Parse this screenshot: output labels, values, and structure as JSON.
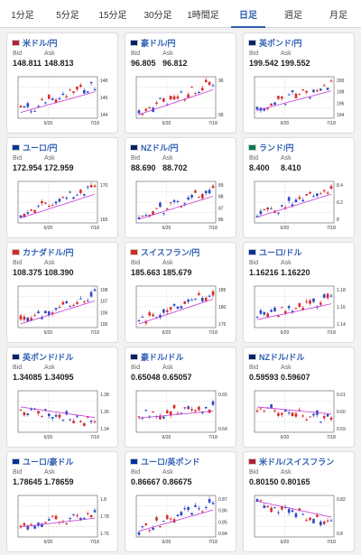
{
  "tabs": [
    {
      "label": "1分足",
      "active": false
    },
    {
      "label": "5分足",
      "active": false
    },
    {
      "label": "15分足",
      "active": false
    },
    {
      "label": "30分足",
      "active": false
    },
    {
      "label": "1時間足",
      "active": false
    },
    {
      "label": "日足",
      "active": true
    },
    {
      "label": "週足",
      "active": false
    },
    {
      "label": "月足",
      "active": false
    }
  ],
  "labels": {
    "bid": "Bid",
    "ask": "Ask"
  },
  "colors": {
    "up": "#d62a2a",
    "down": "#2a47c8",
    "ma": "#c43ad6",
    "accent": "#2f5fb3"
  },
  "pairs": [
    {
      "title": "米ドル/円",
      "flag": "us",
      "bid": "148.811",
      "ask": "148.813",
      "x_ticks": [
        "6/20",
        "7/18"
      ],
      "y_ticks": [
        "148",
        "146",
        "144"
      ],
      "trend": [
        0.2,
        0.78
      ]
    },
    {
      "title": "豪ドル/円",
      "flag": "au",
      "bid": "96.805",
      "ask": "96.812",
      "x_ticks": [
        "6/20",
        "7/18"
      ],
      "y_ticks": [
        "96",
        "95"
      ],
      "trend": [
        0.15,
        0.85
      ]
    },
    {
      "title": "英ポンド/円",
      "flag": "gb",
      "bid": "199.542",
      "ask": "199.552",
      "x_ticks": [
        "6/20",
        "7/18"
      ],
      "y_ticks": [
        "200",
        "198",
        "196",
        "194"
      ],
      "trend": [
        0.25,
        0.8
      ]
    },
    {
      "title": "ユーロ/円",
      "flag": "eu",
      "bid": "172.954",
      "ask": "172.959",
      "x_ticks": [
        "6/20",
        "7/18"
      ],
      "y_ticks": [
        "170",
        "165"
      ],
      "trend": [
        0.18,
        0.85
      ]
    },
    {
      "title": "NZドル/円",
      "flag": "nz",
      "bid": "88.690",
      "ask": "88.702",
      "x_ticks": [
        "6/20",
        "7/18"
      ],
      "y_ticks": [
        "89",
        "88",
        "87",
        "86"
      ],
      "trend": [
        0.15,
        0.8
      ]
    },
    {
      "title": "ランド/円",
      "flag": "za",
      "bid": "8.400",
      "ask": "8.410",
      "x_ticks": [
        "6/20",
        "7/18"
      ],
      "y_ticks": [
        "8.4",
        "8.2",
        "8"
      ],
      "trend": [
        0.2,
        0.85
      ]
    },
    {
      "title": "カナダドル/円",
      "flag": "ca",
      "bid": "108.375",
      "ask": "108.390",
      "x_ticks": [
        "6/20",
        "7/18"
      ],
      "y_ticks": [
        "108",
        "107",
        "106",
        "105"
      ],
      "trend": [
        0.15,
        0.8
      ]
    },
    {
      "title": "スイスフラン/円",
      "flag": "ch",
      "bid": "185.663",
      "ask": "185.679",
      "x_ticks": [
        "6/20",
        "7/18"
      ],
      "y_ticks": [
        "185",
        "180",
        "175"
      ],
      "trend": [
        0.15,
        0.85
      ]
    },
    {
      "title": "ユーロ/ドル",
      "flag": "eu",
      "bid": "1.16216",
      "ask": "1.16220",
      "x_ticks": [
        "6/20",
        "7/18"
      ],
      "y_ticks": [
        "1.18",
        "1.16",
        "1.14"
      ],
      "trend": [
        0.25,
        0.7
      ]
    },
    {
      "title": "英ポンド/ドル",
      "flag": "gb",
      "bid": "1.34085",
      "ask": "1.34095",
      "x_ticks": [
        "6/20",
        "7/18"
      ],
      "y_ticks": [
        "1.38",
        "1.36",
        "1.34"
      ],
      "trend": [
        0.55,
        0.25
      ]
    },
    {
      "title": "豪ドル/ドル",
      "flag": "au",
      "bid": "0.65048",
      "ask": "0.65057",
      "x_ticks": [
        "6/20",
        "7/18"
      ],
      "y_ticks": [
        "0.65",
        "0.64"
      ],
      "trend": [
        0.4,
        0.6
      ]
    },
    {
      "title": "NZドル/ドル",
      "flag": "nz",
      "bid": "0.59593",
      "ask": "0.59607",
      "x_ticks": [
        "6/20",
        "7/18"
      ],
      "y_ticks": [
        "0.61",
        "0.60",
        "0.59"
      ],
      "trend": [
        0.55,
        0.35
      ]
    },
    {
      "title": "ユーロ/豪ドル",
      "flag": "eu",
      "bid": "1.78645",
      "ask": "1.78659",
      "x_ticks": [
        "6/20",
        "7/18"
      ],
      "y_ticks": [
        "1.8",
        "1.78",
        "1.76"
      ],
      "trend": [
        0.3,
        0.55
      ]
    },
    {
      "title": "ユーロ/英ポンド",
      "flag": "eu",
      "bid": "0.86667",
      "ask": "0.86675",
      "x_ticks": [
        "6/20",
        "7/18"
      ],
      "y_ticks": [
        "0.87",
        "0.86",
        "0.85",
        "0.84"
      ],
      "trend": [
        0.2,
        0.8
      ]
    },
    {
      "title": "米ドル/スイスフラン",
      "flag": "us",
      "bid": "0.80150",
      "ask": "0.80165",
      "x_ticks": [
        "6/20",
        "7/18"
      ],
      "y_ticks": [
        "0.82",
        "0.8"
      ],
      "trend": [
        0.8,
        0.35
      ]
    }
  ]
}
